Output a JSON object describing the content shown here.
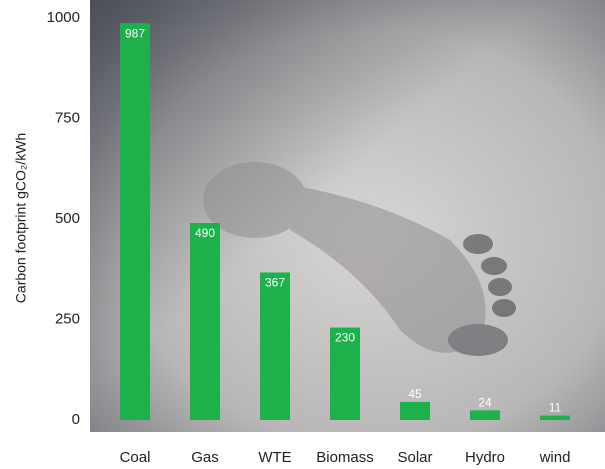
{
  "chart_data": {
    "type": "bar",
    "y_label": "Carbon footprint gCO₂/kWh",
    "categories": [
      "Coal",
      "Gas",
      "WTE",
      "Biomass",
      "Solar",
      "Hydro",
      "wind"
    ],
    "values": [
      987,
      490,
      367,
      230,
      45,
      24,
      11
    ],
    "color": "#1db14b",
    "ylim": [
      0,
      1000
    ],
    "yticks": [
      0,
      250,
      500,
      750,
      1000
    ],
    "grid": false
  }
}
